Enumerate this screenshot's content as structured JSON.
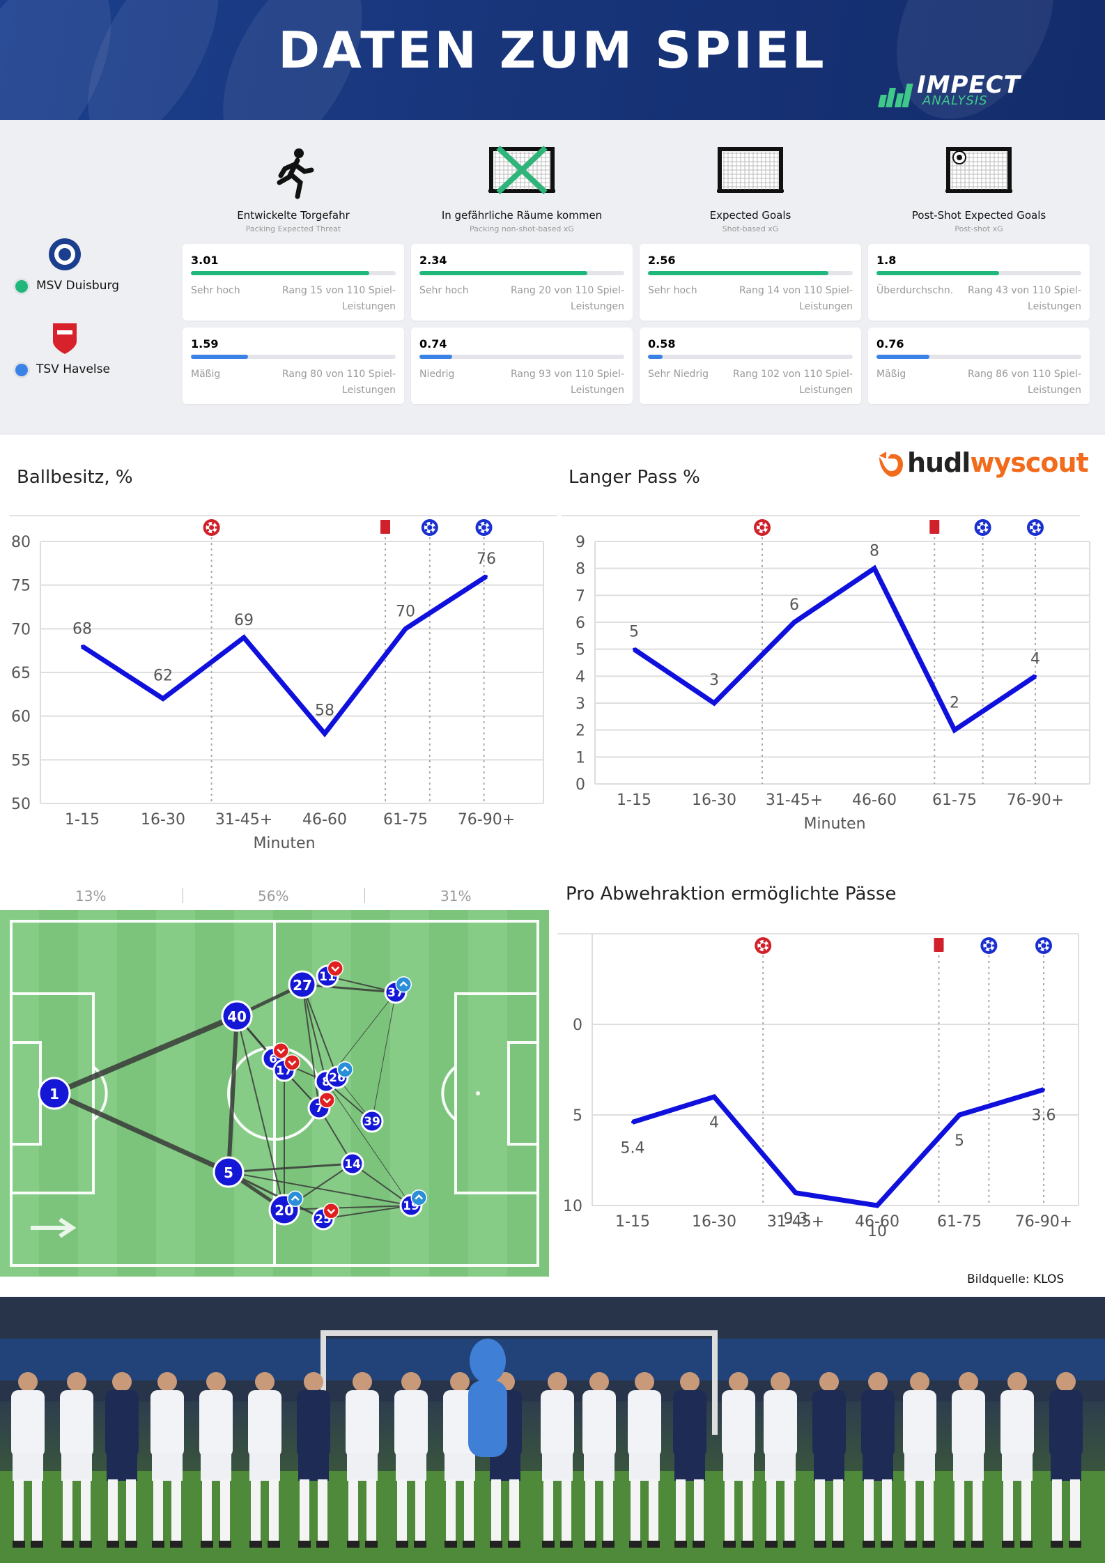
{
  "header": {
    "title": "DATEN ZUM SPIEL",
    "logo_main": "IMPECT",
    "logo_sub": "ANALYSIS"
  },
  "metrics": {
    "columns": [
      {
        "label": "Entwickelte Torgefahr",
        "sub": "Packing Expected Threat",
        "icon": "running-player-icon"
      },
      {
        "label": "In gefährliche Räume kommen",
        "sub": "Packing non-shot-based xG",
        "icon": "crossed-goal-icon"
      },
      {
        "label": "Expected Goals",
        "sub": "Shot-based xG",
        "icon": "goal-net-icon"
      },
      {
        "label": "Post-Shot Expected Goals",
        "sub": "Post-shot xG",
        "icon": "goal-with-ball-icon"
      }
    ],
    "teams": [
      {
        "name": "MSV Duisburg",
        "color": "#1fb87a",
        "cards": [
          {
            "value": "3.01",
            "level": "Sehr hoch",
            "rank": "Rang 15 von 110 Spiel-Leistungen",
            "fill": 0.87
          },
          {
            "value": "2.34",
            "level": "Sehr hoch",
            "rank": "Rang 20 von 110 Spiel-Leistungen",
            "fill": 0.82
          },
          {
            "value": "2.56",
            "level": "Sehr hoch",
            "rank": "Rang 14 von 110 Spiel-Leistungen",
            "fill": 0.88
          },
          {
            "value": "1.8",
            "level": "Überdurchschn.",
            "rank": "Rang 43 von 110 Spiel-Leistungen",
            "fill": 0.6
          }
        ]
      },
      {
        "name": "TSV Havelse",
        "color": "#3b82e6",
        "cards": [
          {
            "value": "1.59",
            "level": "Mäßig",
            "rank": "Rang 80 von 110 Spiel-Leistungen",
            "fill": 0.28
          },
          {
            "value": "0.74",
            "level": "Niedrig",
            "rank": "Rang 93 von 110 Spiel-Leistungen",
            "fill": 0.16
          },
          {
            "value": "0.58",
            "level": "Sehr Niedrig",
            "rank": "Rang 102 von 110 Spiel-Leistungen",
            "fill": 0.07
          },
          {
            "value": "0.76",
            "level": "Mäßig",
            "rank": "Rang 86 von 110 Spiel-Leistungen",
            "fill": 0.26
          }
        ]
      }
    ]
  },
  "wyscout": {
    "part1": "hudl",
    "part2": "wyscout"
  },
  "chart_data": [
    {
      "type": "line",
      "title": "Ballbesitz, %",
      "xlabel": "Minuten",
      "categories": [
        "1-15",
        "16-30",
        "31-45+",
        "46-60",
        "61-75",
        "76-90+"
      ],
      "values": [
        68,
        62,
        69,
        58,
        70,
        76
      ],
      "value_labels": [
        "68",
        "62",
        "69",
        "58",
        "70",
        "76"
      ],
      "ylim": [
        50,
        80
      ],
      "yticks": [
        "50",
        "55",
        "60",
        "65",
        "70",
        "75",
        "80"
      ],
      "color": "#1010dd",
      "events": [
        {
          "x": 1.6,
          "type": "goal-red"
        },
        {
          "x": 3.75,
          "type": "red-card"
        },
        {
          "x": 4.3,
          "type": "goal-blue"
        },
        {
          "x": 4.97,
          "type": "goal-blue"
        }
      ]
    },
    {
      "type": "line",
      "title": "Langer Pass %",
      "xlabel": "Minuten",
      "categories": [
        "1-15",
        "16-30",
        "31-45+",
        "46-60",
        "61-75",
        "76-90+"
      ],
      "values": [
        5,
        3,
        6,
        8,
        2,
        4
      ],
      "value_labels": [
        "5",
        "3",
        "6",
        "8",
        "2",
        "4"
      ],
      "ylim": [
        0,
        9
      ],
      "yticks": [
        "0",
        "1",
        "2",
        "3",
        "4",
        "5",
        "6",
        "7",
        "8",
        "9"
      ],
      "color": "#1010dd",
      "events": [
        {
          "x": 1.6,
          "type": "goal-red"
        },
        {
          "x": 3.75,
          "type": "red-card"
        },
        {
          "x": 4.35,
          "type": "goal-blue"
        },
        {
          "x": 5.0,
          "type": "goal-blue"
        }
      ]
    },
    {
      "type": "line",
      "title": "Pro Abwehraktion ermöglichte Pässe",
      "xlabel": "",
      "categories": [
        "1-15",
        "16-30",
        "31-45+",
        "46-60",
        "61-75",
        "76-90+"
      ],
      "values": [
        5.4,
        4,
        9.3,
        10,
        5,
        3.6
      ],
      "value_labels": [
        "5.4",
        "4",
        "9.3",
        "10",
        "5",
        "3.6"
      ],
      "ylim": [
        -5,
        10
      ],
      "y_inverted": true,
      "yticks": [
        "0",
        "5",
        "10"
      ],
      "color": "#1010dd",
      "events": [
        {
          "x": 1.6,
          "type": "goal-red"
        },
        {
          "x": 3.75,
          "type": "red-card"
        },
        {
          "x": 4.35,
          "type": "goal-blue"
        },
        {
          "x": 5.0,
          "type": "goal-blue"
        }
      ]
    }
  ],
  "pass_network": {
    "zones": [
      "13%",
      "56%",
      "31%"
    ],
    "players": [
      {
        "num": "1",
        "badge": ""
      },
      {
        "num": "40",
        "badge": ""
      },
      {
        "num": "27",
        "badge": ""
      },
      {
        "num": "11",
        "badge": "red"
      },
      {
        "num": "37",
        "badge": "blue"
      },
      {
        "num": "6",
        "badge": "red"
      },
      {
        "num": "17",
        "badge": "red"
      },
      {
        "num": "8",
        "badge": ""
      },
      {
        "num": "26",
        "badge": "blue"
      },
      {
        "num": "7",
        "badge": "red"
      },
      {
        "num": "39",
        "badge": ""
      },
      {
        "num": "5",
        "badge": ""
      },
      {
        "num": "14",
        "badge": ""
      },
      {
        "num": "20",
        "badge": "blue"
      },
      {
        "num": "25",
        "badge": "red"
      },
      {
        "num": "19",
        "badge": "blue"
      }
    ]
  },
  "source": "Bildquelle: KLOS"
}
